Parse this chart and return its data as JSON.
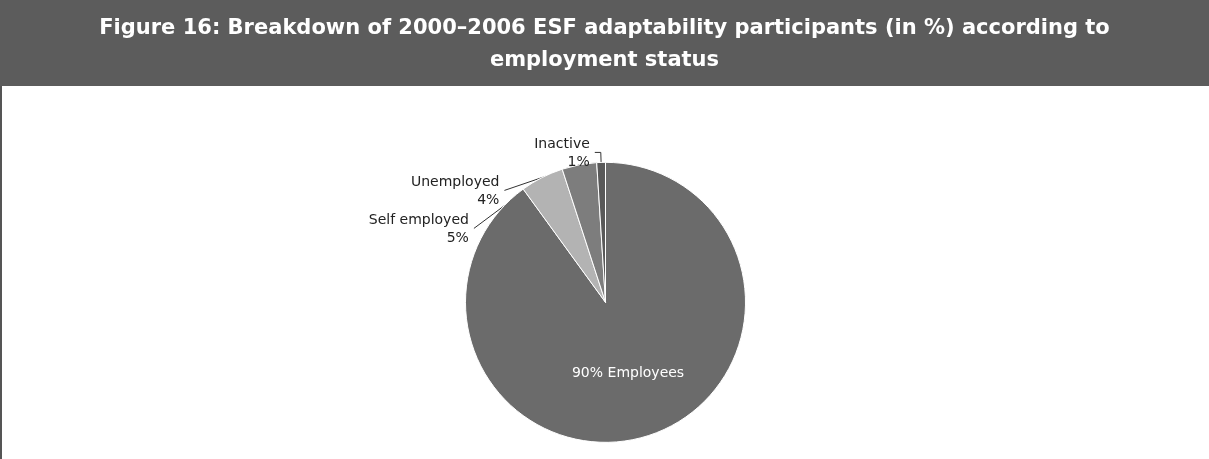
{
  "chart_data": {
    "type": "pie",
    "title": "Figure 16: Breakdown of 2000–2006 ESF adaptability participants (in %) according to employment status",
    "categories": [
      "Employees",
      "Self employed",
      "Unemployed",
      "Inactive"
    ],
    "values": [
      90,
      5,
      4,
      1
    ],
    "colors": [
      "#6b6b6b",
      "#b3b3b3",
      "#7d7d7d",
      "#595959"
    ],
    "value_labels": [
      "90%",
      "5%",
      "4%",
      "1%"
    ],
    "legend": false
  }
}
